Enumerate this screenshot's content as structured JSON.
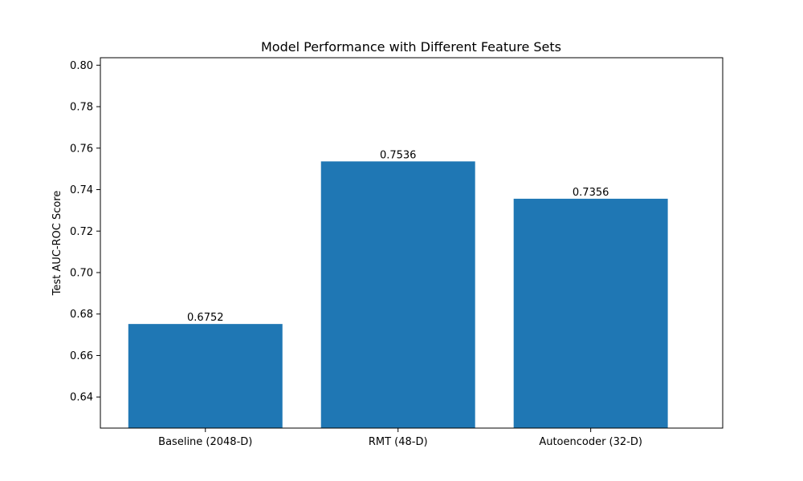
{
  "chart_data": {
    "type": "bar",
    "title": "Model Performance with Different Feature Sets",
    "xlabel": "",
    "ylabel": "Test AUC-ROC Score",
    "categories": [
      "Baseline (2048-D)",
      "RMT (48-D)",
      "Autoencoder (32-D)"
    ],
    "values": [
      0.6752,
      0.7536,
      0.7356
    ],
    "data_labels": [
      "0.6752",
      "0.7536",
      "0.7356"
    ],
    "ylim": [
      0.625,
      0.8036
    ],
    "yticks": [
      0.64,
      0.66,
      0.68,
      0.7,
      0.72,
      0.74,
      0.76,
      0.78,
      0.8
    ],
    "ytick_labels": [
      "0.64",
      "0.66",
      "0.68",
      "0.70",
      "0.72",
      "0.74",
      "0.76",
      "0.78",
      "0.80"
    ],
    "bar_color": "#1f77b4",
    "grid": false,
    "legend": "none"
  }
}
